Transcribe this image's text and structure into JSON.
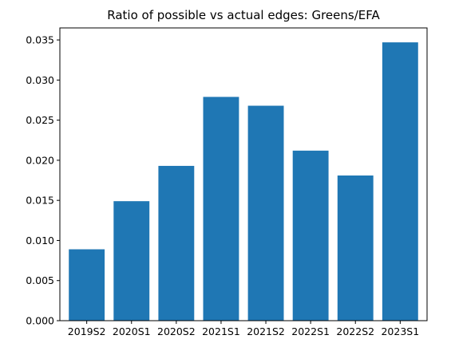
{
  "chart_data": {
    "type": "bar",
    "title": "Ratio of possible vs actual edges: Greens/EFA",
    "xlabel": "",
    "ylabel": "",
    "categories": [
      "2019S2",
      "2020S1",
      "2020S2",
      "2021S1",
      "2021S2",
      "2022S1",
      "2022S2",
      "2023S1"
    ],
    "values": [
      0.0089,
      0.0149,
      0.0193,
      0.0279,
      0.0268,
      0.0212,
      0.0181,
      0.0347
    ],
    "ylim": [
      0,
      0.0365
    ],
    "yticks": [
      0.0,
      0.005,
      0.01,
      0.015,
      0.02,
      0.025,
      0.03,
      0.035
    ],
    "ytick_labels": [
      "0.000",
      "0.005",
      "0.010",
      "0.015",
      "0.020",
      "0.025",
      "0.030",
      "0.035"
    ],
    "bar_color": "#1f77b4",
    "grid": false,
    "legend": false
  }
}
